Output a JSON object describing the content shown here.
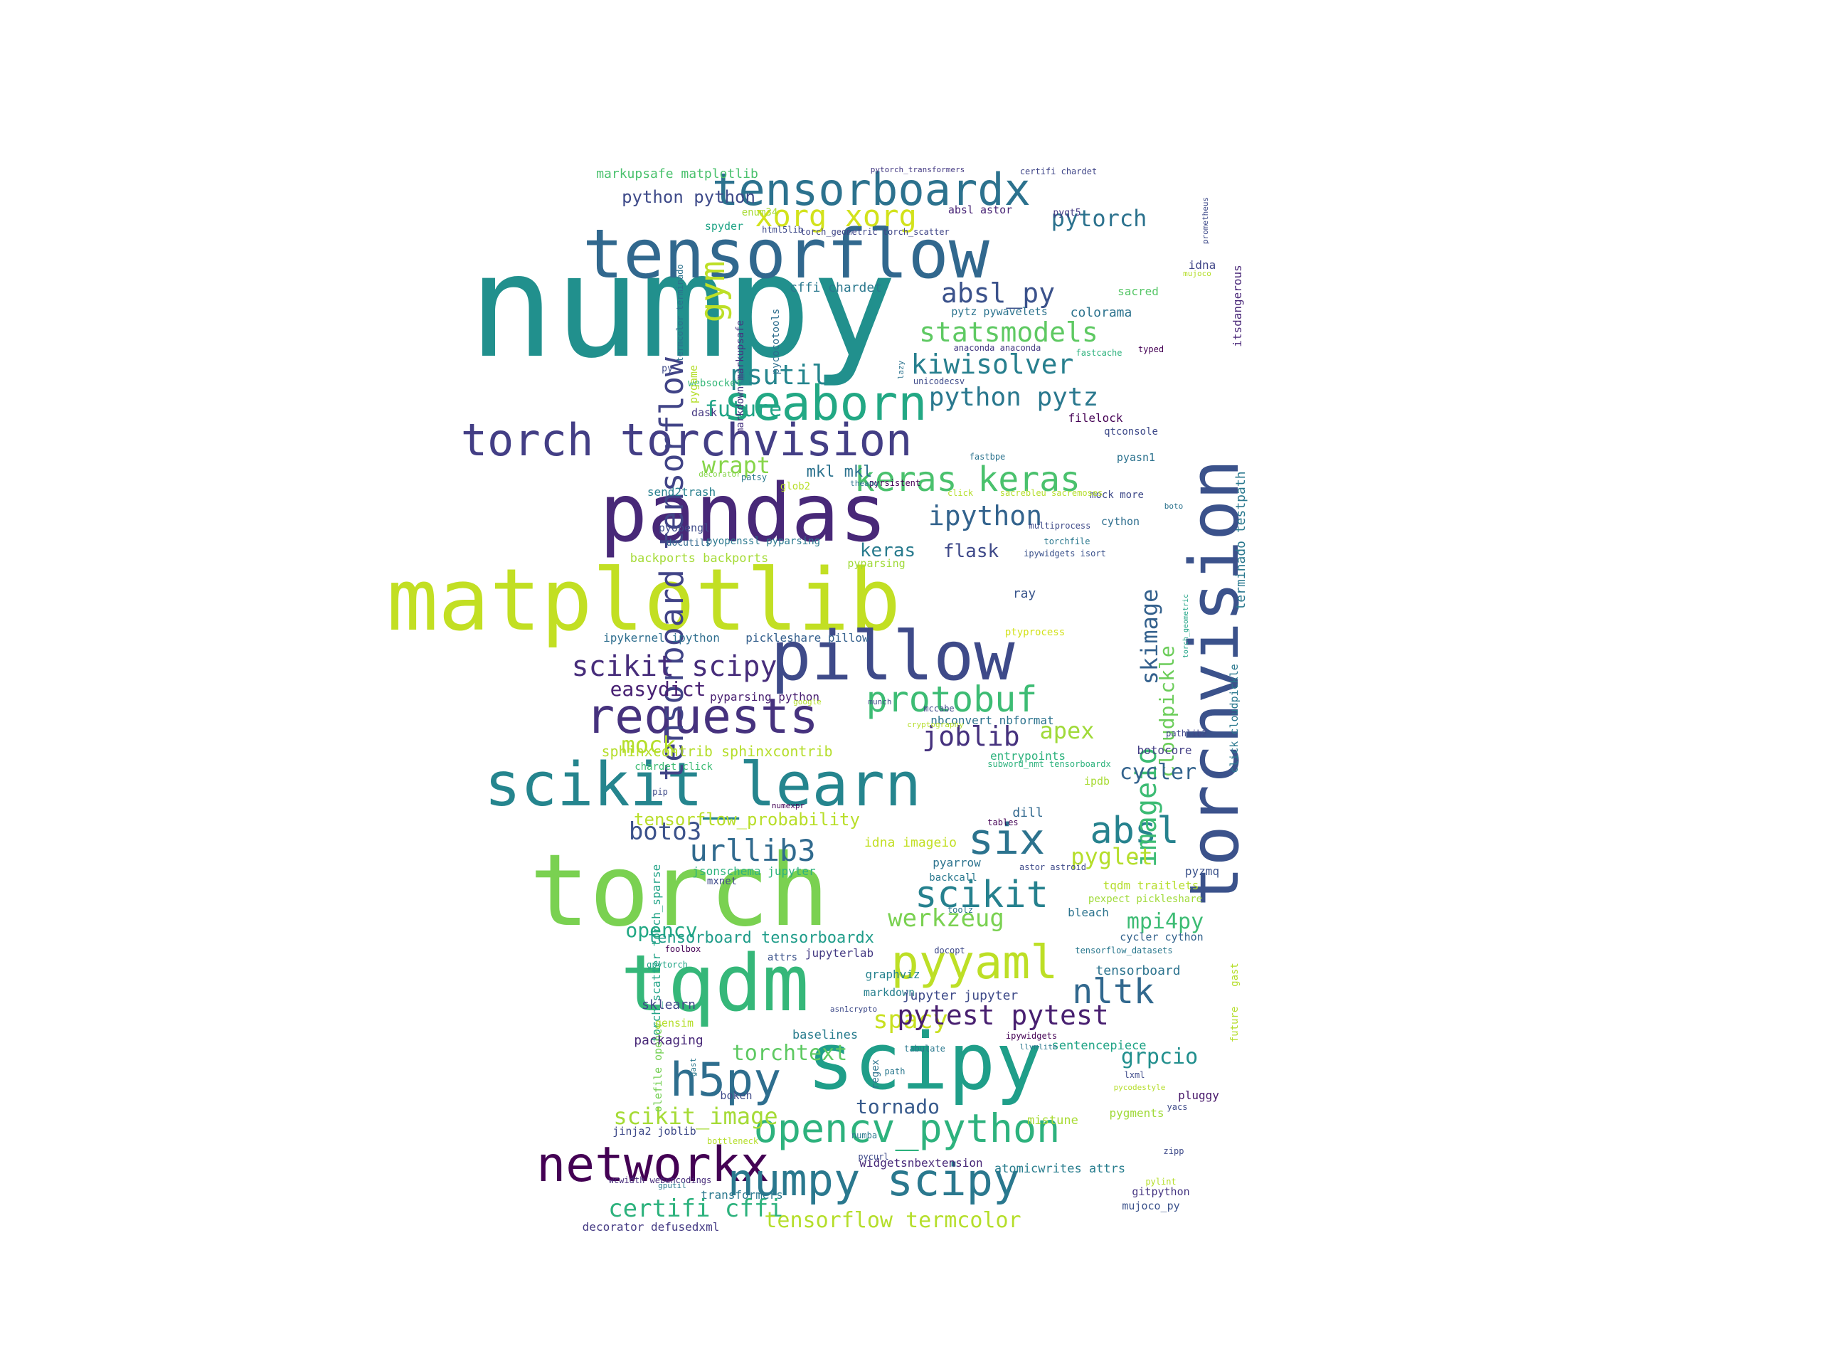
{
  "words": [
    {
      "text": "numpy",
      "color": "#21908d"
    },
    {
      "text": "tensorflow",
      "color": "#31688e"
    },
    {
      "text": "torchvision",
      "color": "#3b528b"
    },
    {
      "text": "pandas",
      "color": "#482878"
    },
    {
      "text": "matplotlib",
      "color": "#c2df23"
    },
    {
      "text": "pillow",
      "color": "#3e4a89"
    },
    {
      "text": "scikit_learn",
      "color": "#25858e"
    },
    {
      "text": "torch",
      "color": "#7ad151"
    },
    {
      "text": "tqdm",
      "color": "#35b779"
    },
    {
      "text": "scipy",
      "color": "#1f9e89"
    },
    {
      "text": "tensorboardx",
      "color": "#2c728e"
    },
    {
      "text": "seaborn",
      "color": "#22a884"
    },
    {
      "text": "torch torchvision",
      "color": "#433e85"
    },
    {
      "text": "requests",
      "color": "#46327e"
    },
    {
      "text": "networkx",
      "color": "#440154"
    },
    {
      "text": "opencv_python",
      "color": "#2db27d"
    },
    {
      "text": "numpy scipy",
      "color": "#2a788e"
    },
    {
      "text": "h5py",
      "color": "#2e6e8e"
    },
    {
      "text": "pyyaml",
      "color": "#bddf26"
    },
    {
      "text": "tensorboard tensorflow",
      "color": "#414487"
    },
    {
      "text": "gym",
      "color": "#bddf26"
    },
    {
      "text": "xorg xorg",
      "color": "#d2e21b"
    },
    {
      "text": "keras keras",
      "color": "#4ac16d"
    },
    {
      "text": "protobuf",
      "color": "#3dbc74"
    },
    {
      "text": "six",
      "color": "#2c738e"
    },
    {
      "text": "absl",
      "color": "#26828e"
    },
    {
      "text": "scikit",
      "color": "#26818e"
    },
    {
      "text": "nltk",
      "color": "#31688e"
    },
    {
      "text": "scikit scipy",
      "color": "#472d7b"
    },
    {
      "text": "urllib3",
      "color": "#306a8e"
    },
    {
      "text": "statsmodels",
      "color": "#5ec962"
    },
    {
      "text": "kiwisolver",
      "color": "#277f8e"
    },
    {
      "text": "python pytz",
      "color": "#2a788e"
    },
    {
      "text": "absl_py",
      "color": "#3b528b"
    },
    {
      "text": "psutil",
      "color": "#25858e"
    },
    {
      "text": "ipython",
      "color": "#33638d"
    },
    {
      "text": "pytorch",
      "color": "#2c728e"
    },
    {
      "text": "wrapt",
      "color": "#86d549"
    },
    {
      "text": "future",
      "color": "#20a486"
    },
    {
      "text": "joblib",
      "color": "#46327e"
    },
    {
      "text": "apex",
      "color": "#a0da39"
    },
    {
      "text": "imageio",
      "color": "#3dbc74"
    },
    {
      "text": "skimage",
      "color": "#34618d"
    },
    {
      "text": "cloudpickle",
      "color": "#6ccd5a"
    },
    {
      "text": "boto3",
      "color": "#3b528b"
    },
    {
      "text": "mock",
      "color": "#b5de2b"
    },
    {
      "text": "easydict",
      "color": "#482173"
    },
    {
      "text": "cycler",
      "color": "#33638d"
    },
    {
      "text": "pyglet",
      "color": "#b5de2b"
    },
    {
      "text": "werkzeug",
      "color": "#7ad151"
    },
    {
      "text": "mpi4py",
      "color": "#3dbc74"
    },
    {
      "text": "opencv",
      "color": "#22a884"
    },
    {
      "text": "spacy",
      "color": "#c8e020"
    },
    {
      "text": "pytest pytest",
      "color": "#481f70"
    },
    {
      "text": "grpcio",
      "color": "#218f8d"
    },
    {
      "text": "scikit_image",
      "color": "#a5db36"
    },
    {
      "text": "tornado",
      "color": "#375a8c"
    },
    {
      "text": "torchtext",
      "color": "#5ec962"
    },
    {
      "text": "certifi cffi",
      "color": "#2db27d"
    },
    {
      "text": "tensorflow termcolor",
      "color": "#b5de2b"
    },
    {
      "text": "python python",
      "color": "#3e4a89"
    },
    {
      "text": "markupsafe matplotlib",
      "color": "#4ac16d"
    },
    {
      "text": "keras",
      "color": "#297b8e"
    },
    {
      "text": "flask",
      "color": "#3e4989"
    },
    {
      "text": "mkl mkl",
      "color": "#2c728e"
    },
    {
      "text": "tensorflow_probability",
      "color": "#b8de29"
    },
    {
      "text": "tensorboard tensorboardx",
      "color": "#1e9c89"
    },
    {
      "text": "sphinxcontrib sphinxcontrib",
      "color": "#b5de2b"
    },
    {
      "text": "terminado testpath",
      "color": "#2a788e"
    },
    {
      "text": "torch_scatter torch_sparse",
      "color": "#20a386"
    },
    {
      "text": "olefile opencv",
      "color": "#75d054"
    },
    {
      "text": "tensorboard",
      "color": "#2c738e"
    },
    {
      "text": "ray",
      "color": "#39558c"
    },
    {
      "text": "itsdangerous",
      "color": "#482677"
    },
    {
      "text": "colorama",
      "color": "#2c738e"
    },
    {
      "text": "cffi chardet",
      "color": "#2a788e"
    },
    {
      "text": "sacred",
      "color": "#56c667"
    },
    {
      "text": "idna",
      "color": "#404688"
    },
    {
      "text": "jupyterlab",
      "color": "#443a83"
    },
    {
      "text": "graphviz",
      "color": "#26828e"
    },
    {
      "text": "markdown",
      "color": "#277f8e"
    },
    {
      "text": "jupyter jupyter",
      "color": "#3e4a89"
    },
    {
      "text": "sklearn",
      "color": "#404688"
    },
    {
      "text": "packaging",
      "color": "#482878"
    },
    {
      "text": "baselines",
      "color": "#287c8e"
    },
    {
      "text": "sentencepiece",
      "color": "#20a486"
    },
    {
      "text": "bokeh",
      "color": "#3e4a89"
    },
    {
      "text": "jinja2 joblib",
      "color": "#3e4a89"
    },
    {
      "text": "mistune",
      "color": "#a8db34"
    },
    {
      "text": "pygments",
      "color": "#a0da39"
    },
    {
      "text": "pluggy",
      "color": "#48186a"
    },
    {
      "text": "widgetsnbextension",
      "color": "#482878"
    },
    {
      "text": "atomicwrites attrs",
      "color": "#287d8e"
    },
    {
      "text": "transformers",
      "color": "#2a788e"
    },
    {
      "text": "decorator defusedxml",
      "color": "#443a83"
    },
    {
      "text": "gitpython",
      "color": "#453581"
    },
    {
      "text": "mujoco_py",
      "color": "#3b528b"
    },
    {
      "text": "wcwidth webencodings",
      "color": "#472c7a"
    },
    {
      "text": "dill",
      "color": "#31688e"
    },
    {
      "text": "idna imageio",
      "color": "#c2df23"
    },
    {
      "text": "jsonschema jupyter",
      "color": "#2db27d"
    },
    {
      "text": "backports backports",
      "color": "#a5db36"
    },
    {
      "text": "pyparsing",
      "color": "#a0da39"
    },
    {
      "text": "ipykernel ipython",
      "color": "#2e6e8e"
    },
    {
      "text": "pickleshare pillow",
      "color": "#35608d"
    },
    {
      "text": "pyparsing python",
      "color": "#481f70"
    },
    {
      "text": "nbconvert nbformat",
      "color": "#2c738e"
    },
    {
      "text": "entrypoints",
      "color": "#2db27d"
    },
    {
      "text": "botocore",
      "color": "#433e85"
    },
    {
      "text": "chardet click",
      "color": "#3dbc74"
    },
    {
      "text": "ipdb",
      "color": "#a8db34"
    },
    {
      "text": "send2trash",
      "color": "#277f8e"
    },
    {
      "text": "pyopengl",
      "color": "#3e4a89"
    },
    {
      "text": "pyopenssl pyparsing",
      "color": "#2a788e"
    },
    {
      "text": "docutils",
      "color": "#31688e"
    },
    {
      "text": "cython",
      "color": "#2e6e8e"
    },
    {
      "text": "pyasn1",
      "color": "#2c728e"
    },
    {
      "text": "qtconsole",
      "color": "#3e4a89"
    },
    {
      "text": "filelock",
      "color": "#440154"
    },
    {
      "text": "dask",
      "color": "#453781"
    },
    {
      "text": "websocket",
      "color": "#35b779"
    },
    {
      "text": "pygame",
      "color": "#b5de2b"
    },
    {
      "text": "spyder",
      "color": "#20a486"
    },
    {
      "text": "enum34",
      "color": "#a8db34"
    },
    {
      "text": "absl astor",
      "color": "#482475"
    },
    {
      "text": "pyqt5",
      "color": "#443a83"
    },
    {
      "text": "markdown markupsafe",
      "color": "#46337f"
    },
    {
      "text": "pycocotools",
      "color": "#2e6e8e"
    },
    {
      "text": "termcolor terminado",
      "color": "#2c728e"
    },
    {
      "text": "py",
      "color": "#3e4a89"
    },
    {
      "text": "pytz pywavelets",
      "color": "#2c738e"
    },
    {
      "text": "glob2",
      "color": "#b8de29"
    },
    {
      "text": "mock more",
      "color": "#3e4a89"
    },
    {
      "text": "pyrsistent",
      "color": "#440154"
    },
    {
      "text": "multiprocess",
      "color": "#3e4a89"
    },
    {
      "text": "torchfile",
      "color": "#2a788e"
    },
    {
      "text": "ipywidgets isort",
      "color": "#3b528b"
    },
    {
      "text": "tqdm traitlets",
      "color": "#b5de2b"
    },
    {
      "text": "pexpect pickleshare",
      "color": "#a0da39"
    },
    {
      "text": "pyzmq",
      "color": "#3b528b"
    },
    {
      "text": "bleach",
      "color": "#2c738e"
    },
    {
      "text": "cycler cython",
      "color": "#33638d"
    },
    {
      "text": "pyarrow",
      "color": "#2c738e"
    },
    {
      "text": "backcall",
      "color": "#2a788e"
    },
    {
      "text": "numexpr",
      "color": "#440154"
    },
    {
      "text": "mxnet",
      "color": "#3e4a89"
    },
    {
      "text": "attrs",
      "color": "#3b528b"
    },
    {
      "text": "gensim",
      "color": "#b5de2b"
    },
    {
      "text": "regex",
      "color": "#2c738e"
    },
    {
      "text": "pip",
      "color": "#3e4a89"
    },
    {
      "text": "ptyprocess",
      "color": "#d2e21b"
    },
    {
      "text": "click cloudpickle",
      "color": "#2a788e"
    },
    {
      "text": "lazy",
      "color": "#2c738e"
    },
    {
      "text": "html5lib",
      "color": "#3e4a89"
    },
    {
      "text": "torch_geometric torch_scatter",
      "color": "#404688"
    },
    {
      "text": "pytorch_transformers",
      "color": "#443a83"
    },
    {
      "text": "certifi chardet",
      "color": "#404688"
    },
    {
      "text": "prometheus",
      "color": "#3e4a89"
    },
    {
      "text": "mujoco",
      "color": "#b5de2b"
    },
    {
      "text": "anaconda anaconda",
      "color": "#443a83"
    },
    {
      "text": "fastcache",
      "color": "#2db27d"
    },
    {
      "text": "typed",
      "color": "#440154"
    },
    {
      "text": "unicodecsv",
      "color": "#3e4a89"
    },
    {
      "text": "fastbpe",
      "color": "#2c738e"
    },
    {
      "text": "decorator",
      "color": "#86d549"
    },
    {
      "text": "patsy",
      "color": "#2a788e"
    },
    {
      "text": "theano",
      "color": "#2c738e"
    },
    {
      "text": "click",
      "color": "#b5de2b"
    },
    {
      "text": "sacrebleu sacremoses",
      "color": "#b5de2b"
    },
    {
      "text": "boto",
      "color": "#2c738e"
    },
    {
      "text": "torch_geometric",
      "color": "#20a486"
    },
    {
      "text": "google",
      "color": "#b5de2b"
    },
    {
      "text": "munch",
      "color": "#3e4a89"
    },
    {
      "text": "mccabe",
      "color": "#3e4a89"
    },
    {
      "text": "cryptography",
      "color": "#b5de2b"
    },
    {
      "text": "pathlib2",
      "color": "#404688"
    },
    {
      "text": "subword_nmt tensorboardx",
      "color": "#2db27d"
    },
    {
      "text": "tables",
      "color": "#440154"
    },
    {
      "text": "astor astroid",
      "color": "#3e4a89"
    },
    {
      "text": "toolz",
      "color": "#2c738e"
    },
    {
      "text": "foolbox",
      "color": "#440154"
    },
    {
      "text": "docopt",
      "color": "#3e4a89"
    },
    {
      "text": "tensorflow_datasets",
      "color": "#2a788e"
    },
    {
      "text": "gast",
      "color": "#b5de2b"
    },
    {
      "text": "future",
      "color": "#b5de2b"
    },
    {
      "text": "gpytorch",
      "color": "#20a486"
    },
    {
      "text": "asn1crypto",
      "color": "#3e4a89"
    },
    {
      "text": "ipywidgets",
      "color": "#440154"
    },
    {
      "text": "llvmlite",
      "color": "#2a788e"
    },
    {
      "text": "tabulate",
      "color": "#2a788e"
    },
    {
      "text": "path",
      "color": "#2a788e"
    },
    {
      "text": "lxml",
      "color": "#3e4a89"
    },
    {
      "text": "pycodestyle",
      "color": "#b5de2b"
    },
    {
      "text": "yacs",
      "color": "#3e4a89"
    },
    {
      "text": "bottleneck",
      "color": "#b5de2b"
    },
    {
      "text": "numba",
      "color": "#2a788e"
    },
    {
      "text": "pycurl",
      "color": "#3e4a89"
    },
    {
      "text": "zipp",
      "color": "#3e4a89"
    },
    {
      "text": "pylint",
      "color": "#b5de2b"
    },
    {
      "text": "gputil",
      "color": "#2a788e"
    },
    {
      "text": "gast",
      "color": "#2a788e"
    }
  ]
}
